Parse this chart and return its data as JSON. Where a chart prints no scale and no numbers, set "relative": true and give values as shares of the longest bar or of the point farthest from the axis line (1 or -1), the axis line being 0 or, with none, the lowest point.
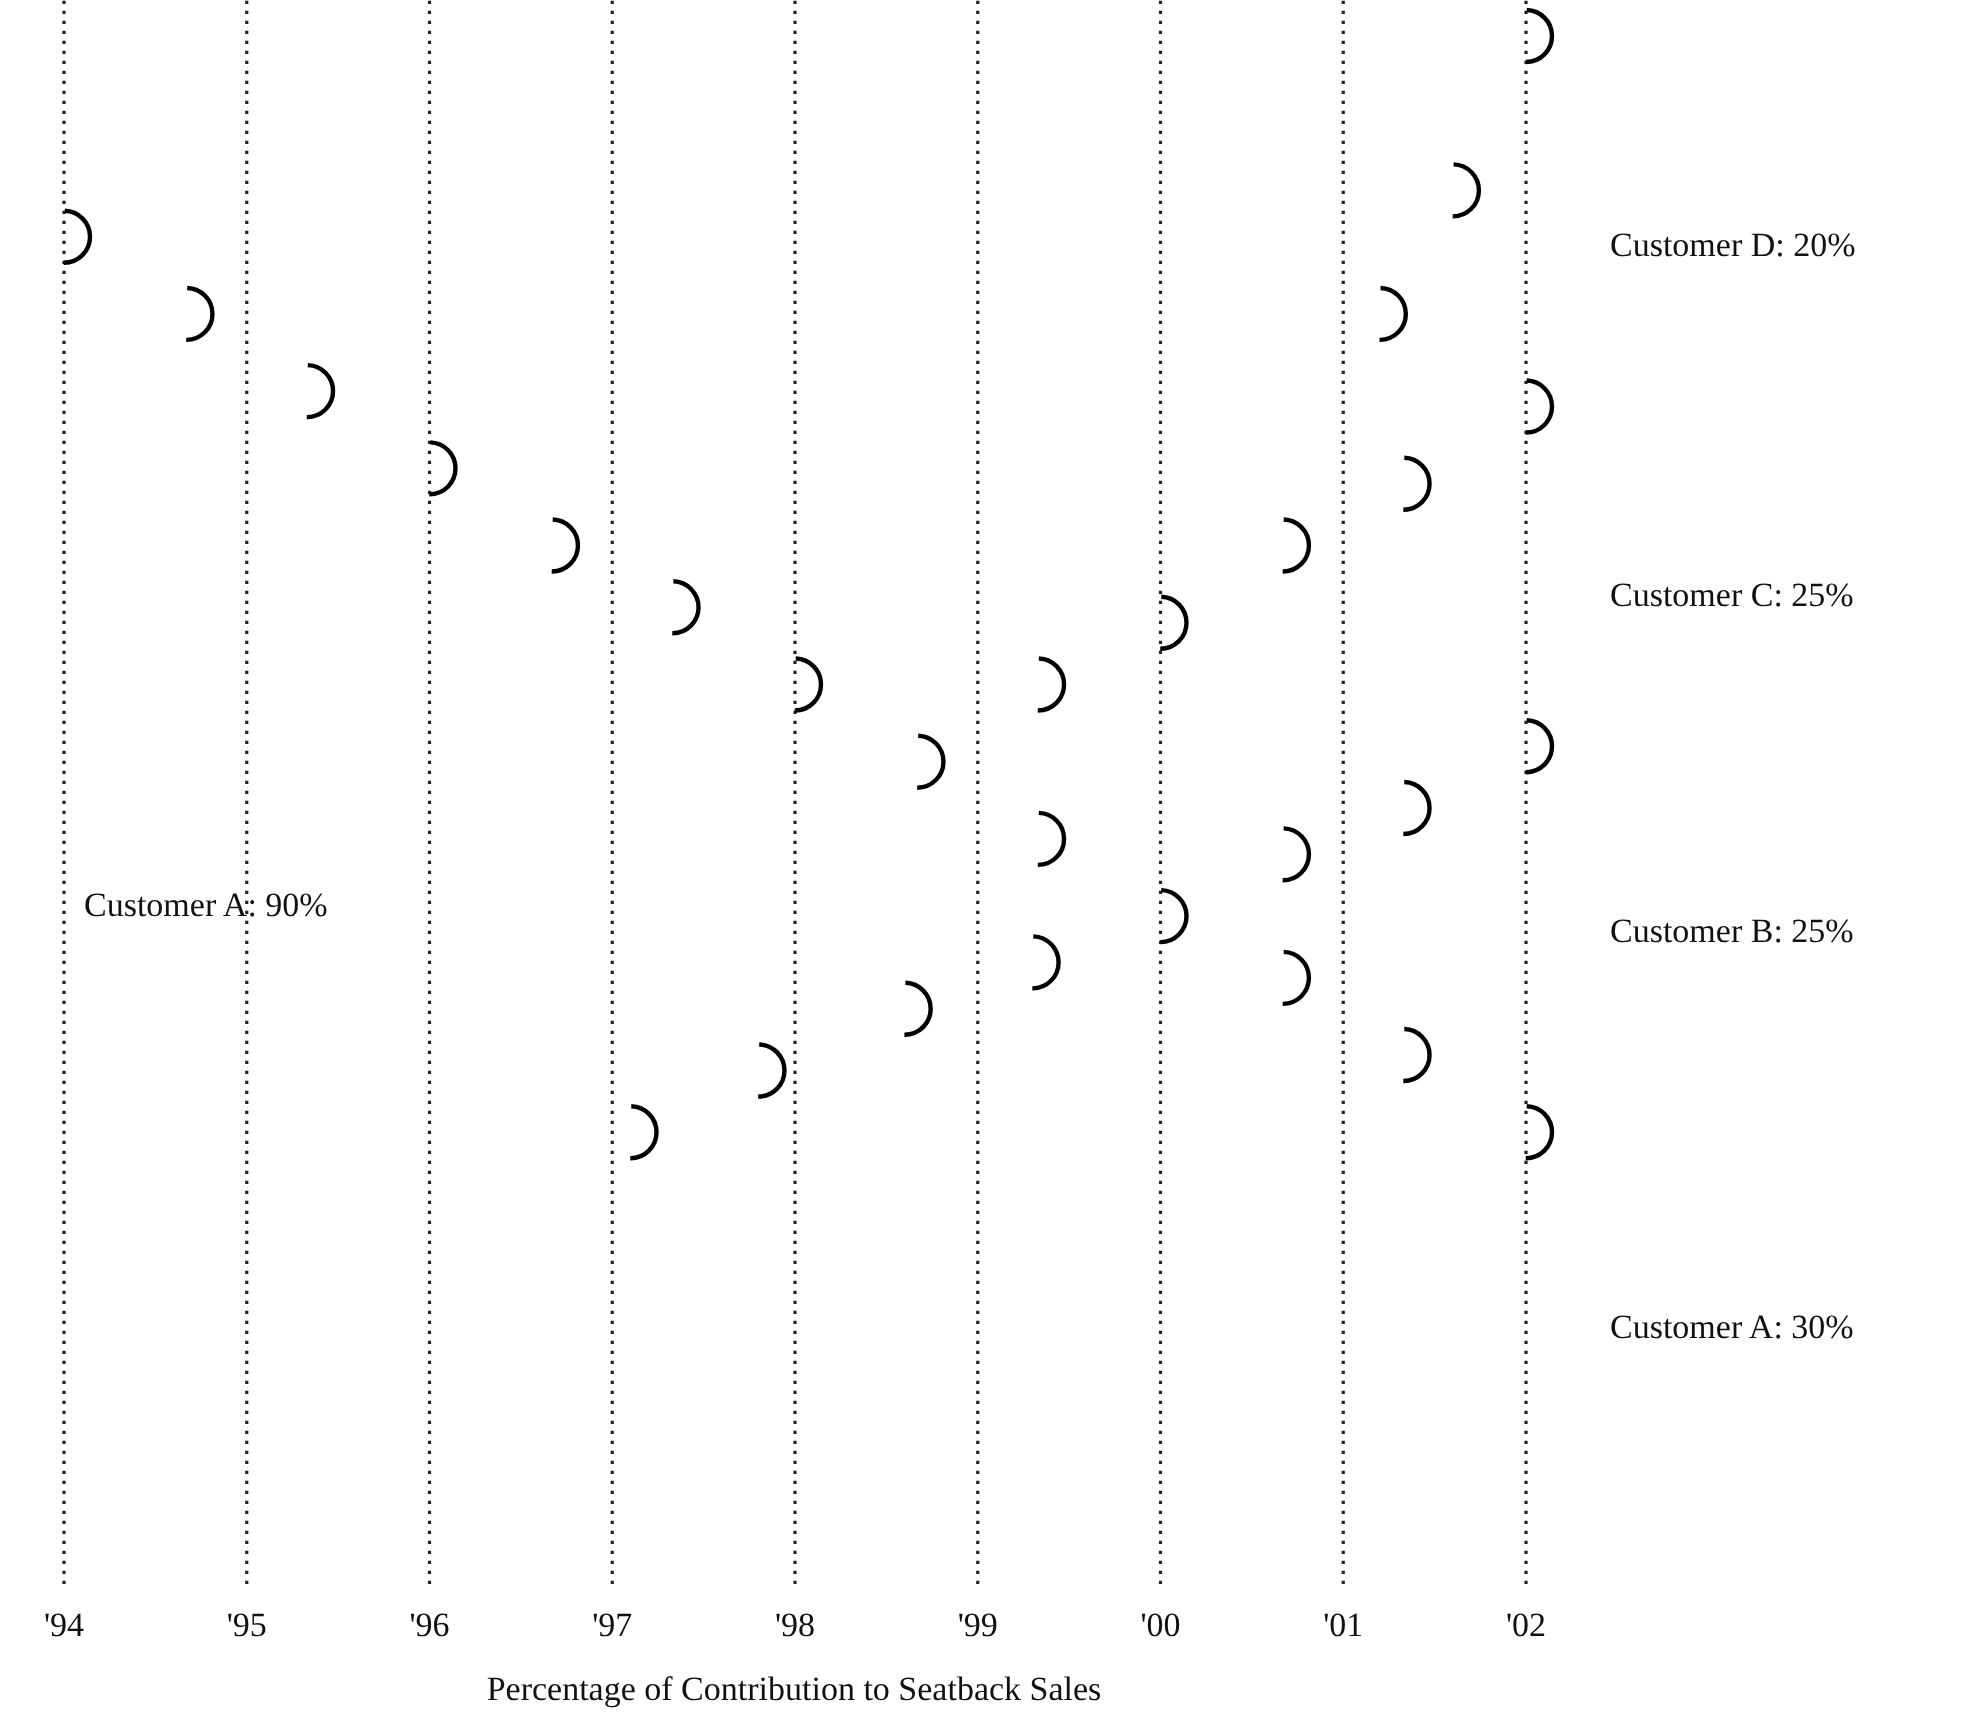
{
  "chart_data": {
    "type": "scatter",
    "relative": true,
    "xlabel": "Percentage of Contribution to Seatback Sales",
    "xlim": [
      1994,
      2002
    ],
    "xticks": [
      {
        "value": 1994,
        "label": "'94"
      },
      {
        "value": 1995,
        "label": "'95"
      },
      {
        "value": 1996,
        "label": "'96"
      },
      {
        "value": 1997,
        "label": "'97"
      },
      {
        "value": 1998,
        "label": "'98"
      },
      {
        "value": 1999,
        "label": "'99"
      },
      {
        "value": 2000,
        "label": "'00"
      },
      {
        "value": 2001,
        "label": "'01"
      },
      {
        "value": 2002,
        "label": "'02"
      }
    ],
    "grid": "x",
    "series": [
      {
        "color": "#000000",
        "x": [
          1994,
          1994.67,
          1995.33,
          1996,
          1996.67,
          1997.33,
          1998,
          1998.67,
          1999.33,
          2000,
          2000.67,
          2001.33,
          2002
        ],
        "values": [
          0.87,
          0.82,
          0.77,
          0.72,
          0.67,
          0.63,
          0.58,
          0.53,
          0.48,
          0.43,
          0.39,
          0.34,
          0.29
        ]
      },
      {
        "color": "#000000",
        "x": [
          1997.1,
          1997.8,
          1998.6,
          1999.3,
          2000,
          2000.67,
          2001.33,
          2002
        ],
        "values": [
          0.29,
          0.33,
          0.37,
          0.4,
          null,
          0.47,
          0.5,
          0.54
        ]
      },
      {
        "color": "#000000",
        "x": [
          1999.33,
          2000,
          2000.67,
          2001.33,
          2002
        ],
        "values": [
          0.58,
          0.62,
          0.67,
          0.71,
          0.76
        ]
      },
      {
        "color": "#000000",
        "x": [
          2001.2,
          2001.6,
          2002
        ],
        "values": [
          0.82,
          0.9,
          1
        ]
      }
    ],
    "annotations": [
      "Customer A: 90%",
      "Customer D: 20%",
      "Customer C: 25%",
      "Customer B: 25%",
      "Customer A: 30%"
    ]
  }
}
